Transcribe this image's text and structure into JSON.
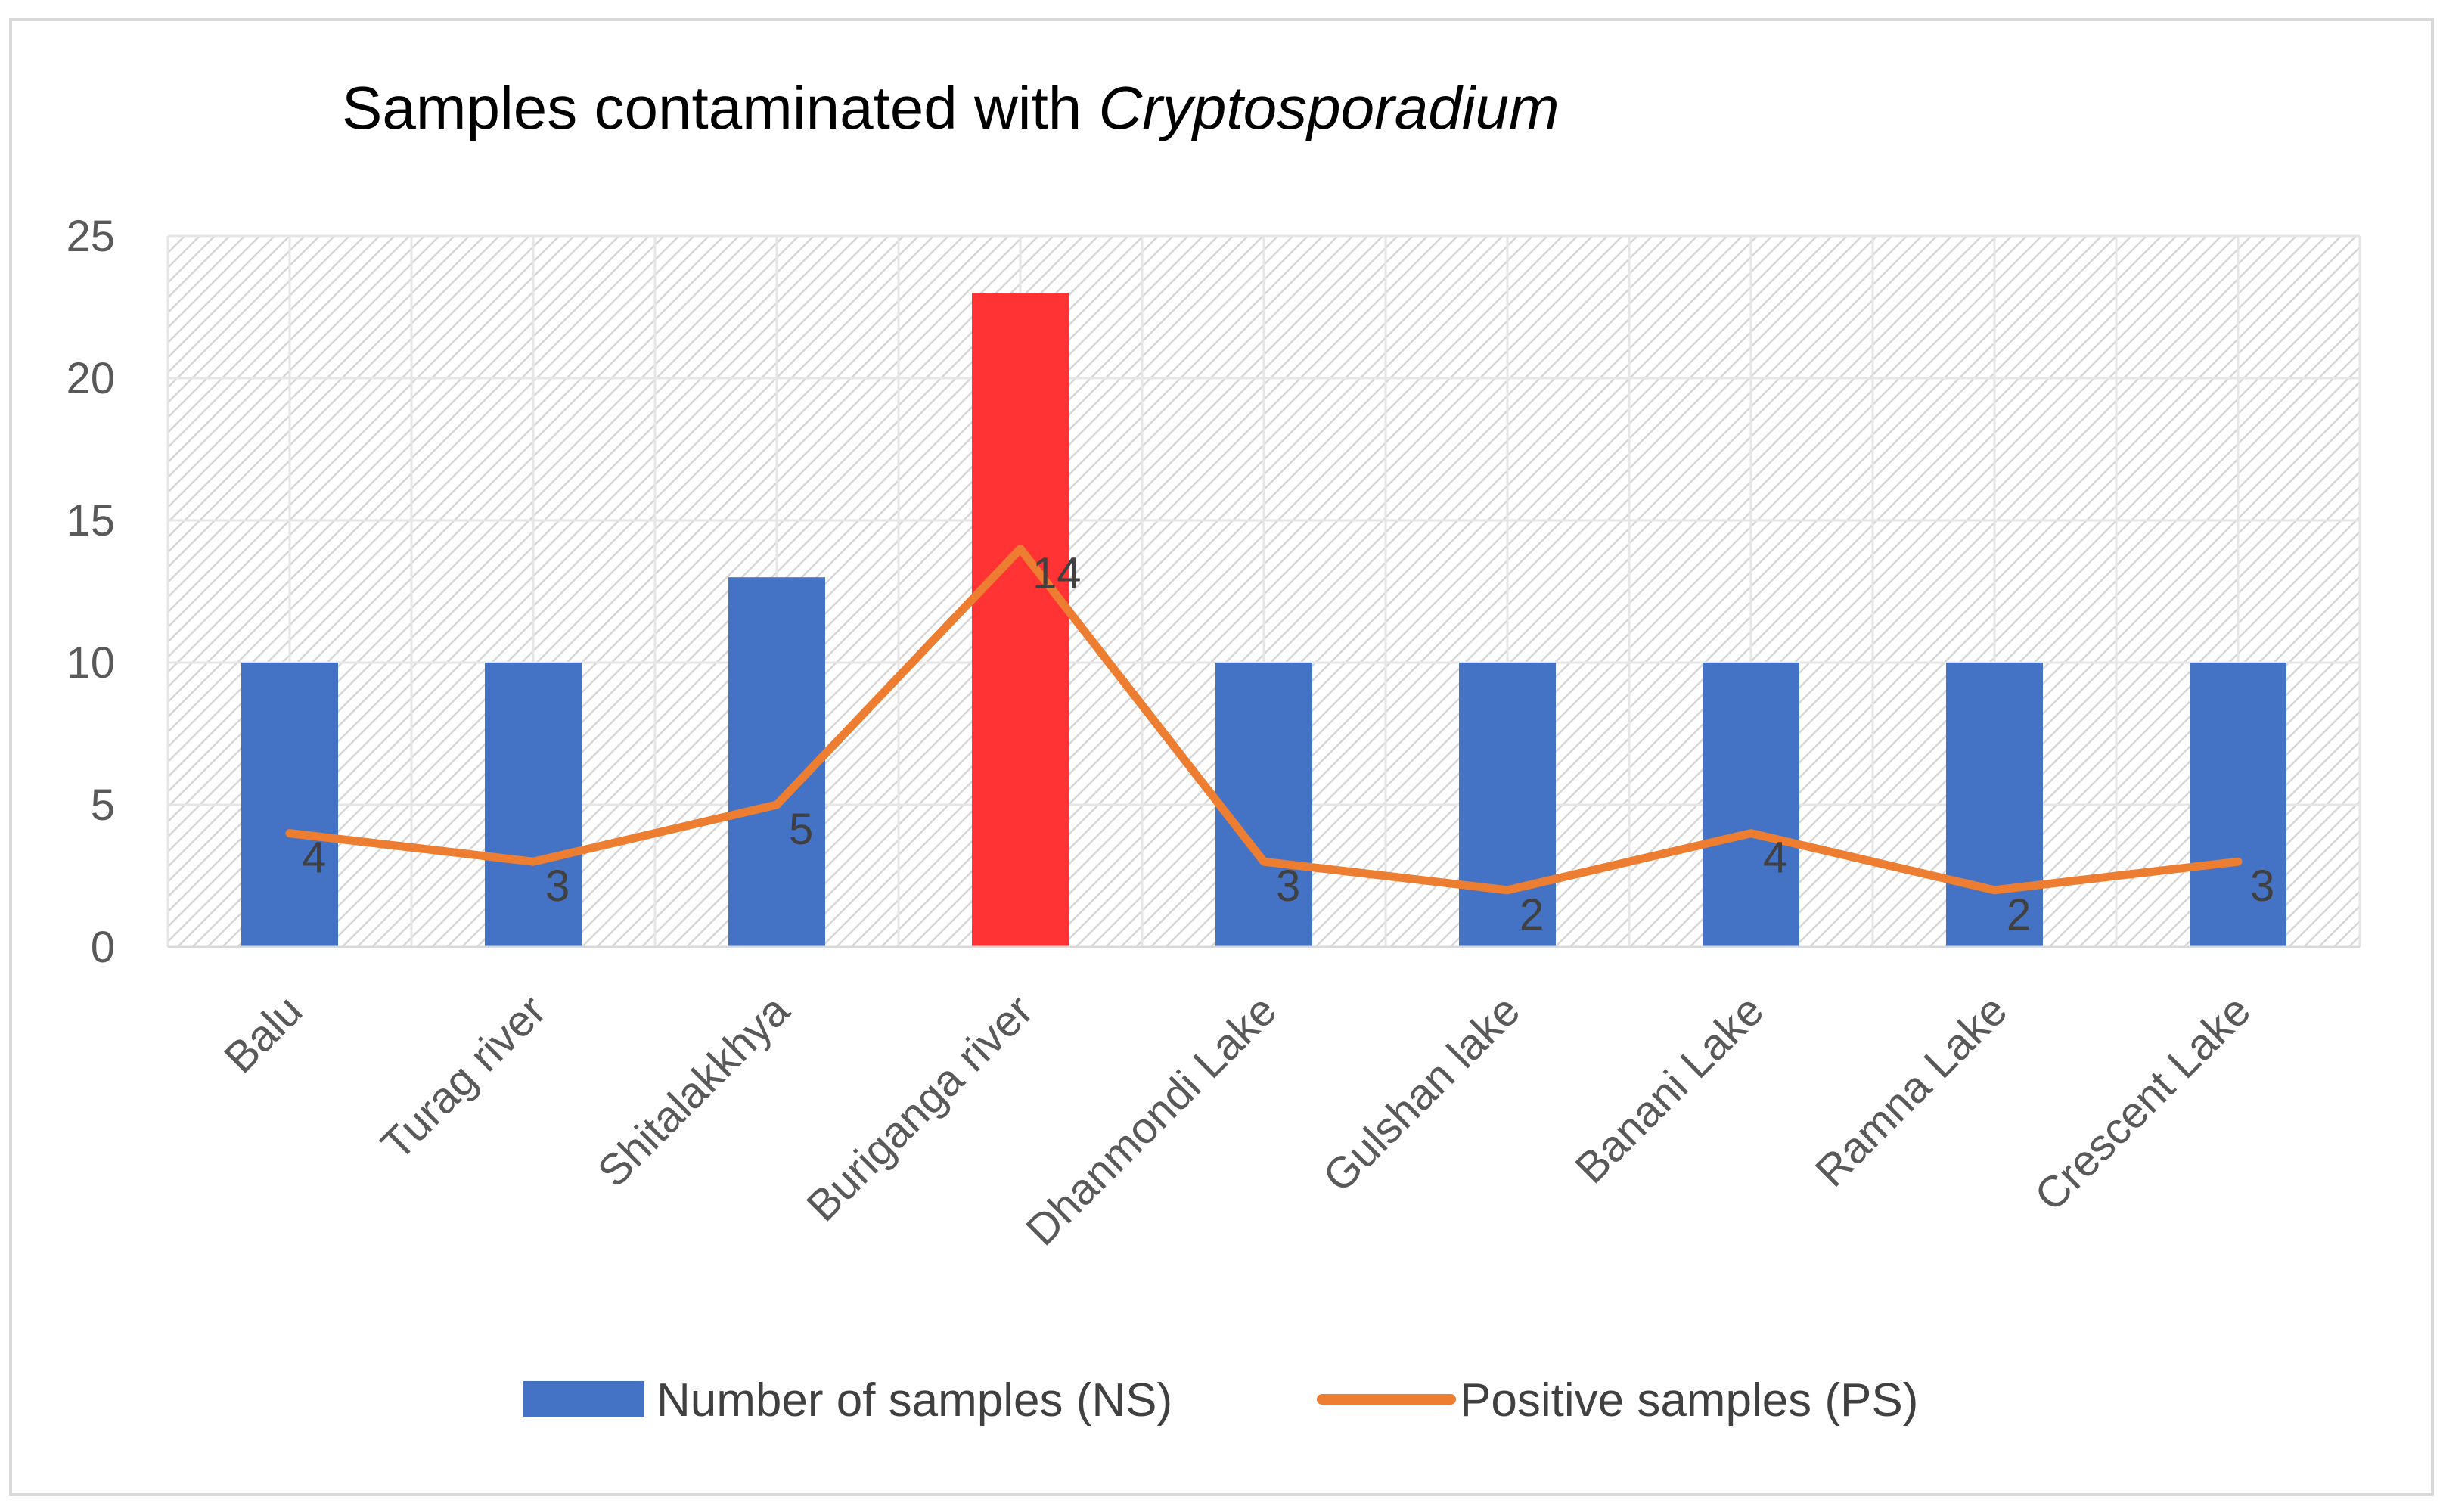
{
  "chart_data": {
    "type": "bar",
    "title_prefix": "Samples contaminated with ",
    "title_italic": "Cryptosporadium",
    "categories": [
      "Balu",
      "Turag river",
      "Shitalakkhya",
      "Buriganga river",
      "Dhanmondi Lake",
      "Gulshan lake",
      "Banani Lake",
      "Ramna Lake",
      "Crescent Lake"
    ],
    "series": [
      {
        "name": "Number of samples (NS)",
        "kind": "bar",
        "color": "#4472C4",
        "highlight_color": "#FF3333",
        "highlight_index": 3,
        "values": [
          10,
          10,
          13,
          23,
          10,
          10,
          10,
          10,
          10
        ]
      },
      {
        "name": "Positive samples (PS)",
        "kind": "line",
        "color": "#ED7D31",
        "values": [
          4,
          3,
          5,
          14,
          3,
          2,
          4,
          2,
          3
        ],
        "data_labels": [
          "4",
          "3",
          "5",
          "14",
          "3",
          "2",
          "4",
          "2",
          "3"
        ]
      }
    ],
    "yticks": [
      "0",
      "5",
      "10",
      "15",
      "20",
      "25"
    ],
    "ylim": [
      0,
      25
    ],
    "xlabel": "",
    "ylabel": "",
    "grid": true,
    "legend_position": "bottom"
  }
}
